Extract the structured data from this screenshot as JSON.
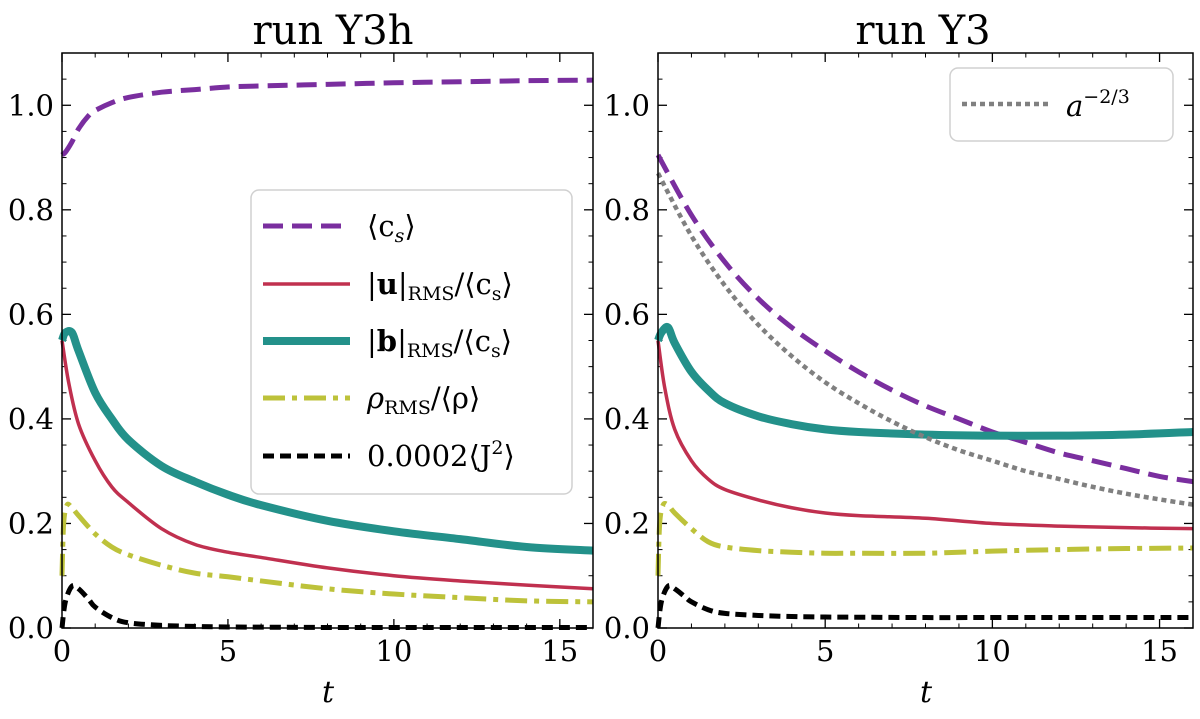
{
  "chart_data": [
    {
      "type": "line",
      "title": "run Y3h",
      "xlabel": "t",
      "ylabel": "",
      "xlim": [
        0,
        16
      ],
      "ylim": [
        0,
        1.1
      ],
      "xticks": [
        "0",
        "5",
        "10",
        "15"
      ],
      "yticks": [
        "0.0",
        "0.2",
        "0.4",
        "0.6",
        "0.8",
        "1.0"
      ],
      "legend_position": "center-right",
      "series": [
        {
          "name": "⟨c_s⟩",
          "color": "#7a2e9f",
          "style": "dashed",
          "x": [
            0,
            0.1,
            0.3,
            0.5,
            0.8,
            1,
            1.5,
            2,
            3,
            4,
            5,
            6,
            8,
            10,
            12,
            14,
            16
          ],
          "y": [
            0.905,
            0.91,
            0.93,
            0.955,
            0.98,
            0.99,
            1.005,
            1.015,
            1.025,
            1.03,
            1.035,
            1.037,
            1.04,
            1.043,
            1.045,
            1.047,
            1.048
          ]
        },
        {
          "name": "|u|_RMS/⟨c_s⟩",
          "color": "#c0304f",
          "style": "solid",
          "x": [
            0,
            0.2,
            0.5,
            1,
            1.5,
            2,
            3,
            4,
            5,
            6,
            8,
            10,
            12,
            14,
            16
          ],
          "y": [
            0.55,
            0.47,
            0.39,
            0.32,
            0.27,
            0.24,
            0.19,
            0.16,
            0.145,
            0.135,
            0.115,
            0.1,
            0.09,
            0.082,
            0.075
          ]
        },
        {
          "name": "|b|_RMS/⟨c_s⟩",
          "color": "#23918a",
          "style": "solid-thick",
          "x": [
            0,
            0.1,
            0.3,
            0.5,
            1,
            1.5,
            2,
            3,
            4,
            5,
            6,
            8,
            10,
            12,
            14,
            16
          ],
          "y": [
            0.55,
            0.565,
            0.565,
            0.53,
            0.45,
            0.4,
            0.36,
            0.31,
            0.28,
            0.255,
            0.235,
            0.205,
            0.185,
            0.17,
            0.155,
            0.148
          ]
        },
        {
          "name": "ρ_RMS/⟨ρ⟩",
          "color": "#bdc23a",
          "style": "dashdot",
          "x": [
            0,
            0.05,
            0.15,
            0.3,
            0.5,
            1,
            1.5,
            2,
            3,
            4,
            5,
            6,
            8,
            10,
            12,
            14,
            16
          ],
          "y": [
            0.1,
            0.2,
            0.235,
            0.23,
            0.215,
            0.18,
            0.155,
            0.14,
            0.12,
            0.105,
            0.098,
            0.09,
            0.075,
            0.065,
            0.058,
            0.052,
            0.05
          ]
        },
        {
          "name": "0.0002⟨J²⟩",
          "color": "#000000",
          "style": "dashed-black",
          "x": [
            0,
            0.1,
            0.3,
            0.5,
            0.8,
            1,
            1.5,
            2,
            3,
            4,
            5,
            8,
            10,
            16
          ],
          "y": [
            0,
            0.05,
            0.08,
            0.075,
            0.055,
            0.04,
            0.02,
            0.01,
            0.005,
            0.003,
            0.002,
            0.001,
            0.001,
            0.001
          ]
        }
      ]
    },
    {
      "type": "line",
      "title": "run Y3",
      "xlabel": "t",
      "ylabel": "",
      "xlim": [
        0,
        16
      ],
      "ylim": [
        0,
        1.1
      ],
      "xticks": [
        "0",
        "5",
        "10",
        "15"
      ],
      "yticks": [
        "0.0",
        "0.2",
        "0.4",
        "0.6",
        "0.8",
        "1.0"
      ],
      "legend_position": "top-right",
      "series": [
        {
          "name": "⟨c_s⟩",
          "color": "#7a2e9f",
          "style": "dashed",
          "x": [
            0,
            1,
            2,
            3,
            4,
            5,
            6,
            7,
            8,
            9,
            10,
            11,
            12,
            13,
            14,
            15,
            16
          ],
          "y": [
            0.905,
            0.79,
            0.7,
            0.63,
            0.575,
            0.53,
            0.49,
            0.455,
            0.425,
            0.4,
            0.375,
            0.355,
            0.335,
            0.32,
            0.305,
            0.29,
            0.28
          ]
        },
        {
          "name": "|u|_RMS/⟨c_s⟩",
          "color": "#c0304f",
          "style": "solid",
          "x": [
            0,
            0.2,
            0.5,
            1,
            1.5,
            2,
            3,
            4,
            5,
            6,
            8,
            10,
            12,
            14,
            16
          ],
          "y": [
            0.55,
            0.46,
            0.38,
            0.32,
            0.285,
            0.265,
            0.245,
            0.23,
            0.22,
            0.215,
            0.21,
            0.2,
            0.195,
            0.192,
            0.19
          ]
        },
        {
          "name": "|b|_RMS/⟨c_s⟩",
          "color": "#23918a",
          "style": "solid-thick",
          "x": [
            0,
            0.1,
            0.3,
            0.5,
            1,
            1.5,
            2,
            3,
            4,
            5,
            6,
            8,
            10,
            12,
            14,
            16
          ],
          "y": [
            0.55,
            0.565,
            0.575,
            0.545,
            0.49,
            0.455,
            0.43,
            0.405,
            0.39,
            0.38,
            0.375,
            0.37,
            0.368,
            0.368,
            0.37,
            0.375
          ]
        },
        {
          "name": "ρ_RMS/⟨ρ⟩",
          "color": "#bdc23a",
          "style": "dashdot",
          "x": [
            0,
            0.05,
            0.15,
            0.3,
            0.5,
            1,
            1.5,
            2,
            3,
            4,
            5,
            6,
            8,
            10,
            12,
            14,
            16
          ],
          "y": [
            0.1,
            0.2,
            0.235,
            0.235,
            0.22,
            0.19,
            0.165,
            0.155,
            0.148,
            0.145,
            0.143,
            0.143,
            0.143,
            0.147,
            0.15,
            0.152,
            0.153
          ]
        },
        {
          "name": "0.0002⟨J²⟩",
          "color": "#000000",
          "style": "dashed-black",
          "x": [
            0,
            0.1,
            0.3,
            0.5,
            0.8,
            1,
            1.5,
            2,
            3,
            4,
            5,
            8,
            10,
            16
          ],
          "y": [
            0,
            0.05,
            0.08,
            0.075,
            0.06,
            0.05,
            0.035,
            0.028,
            0.024,
            0.022,
            0.021,
            0.02,
            0.02,
            0.02
          ]
        },
        {
          "name": "a^{-2/3}",
          "color": "#808080",
          "style": "dotted",
          "x": [
            0,
            1,
            2,
            3,
            4,
            5,
            6,
            7,
            8,
            9,
            10,
            11,
            12,
            13,
            14,
            15,
            16
          ],
          "y": [
            0.87,
            0.75,
            0.655,
            0.58,
            0.52,
            0.47,
            0.43,
            0.395,
            0.365,
            0.34,
            0.32,
            0.3,
            0.285,
            0.27,
            0.257,
            0.246,
            0.236
          ]
        }
      ]
    }
  ],
  "legend_labels": {
    "cs_base": "⟨c",
    "cs_sub": "s",
    "cs_close": "⟩",
    "u_bar_left": "|",
    "u_bold": "u",
    "u_bar_right": "|",
    "u_sub": "RMS",
    "u_rest": "/⟨c",
    "u_rest_sub": "s",
    "u_rest_close": "⟩",
    "b_bar_left": "|",
    "b_bold": "b",
    "b_bar_right": "|",
    "b_sub": "RMS",
    "b_rest": "/⟨c",
    "b_rest_sub": "s",
    "b_rest_close": "⟩",
    "rho_base": "ρ",
    "rho_sub": "RMS",
    "rho_rest": "/⟨ρ⟩",
    "j_base": "0.0002⟨J",
    "j_sup": "2",
    "j_close": "⟩",
    "a_base": "a",
    "a_sup": "−2/3"
  }
}
